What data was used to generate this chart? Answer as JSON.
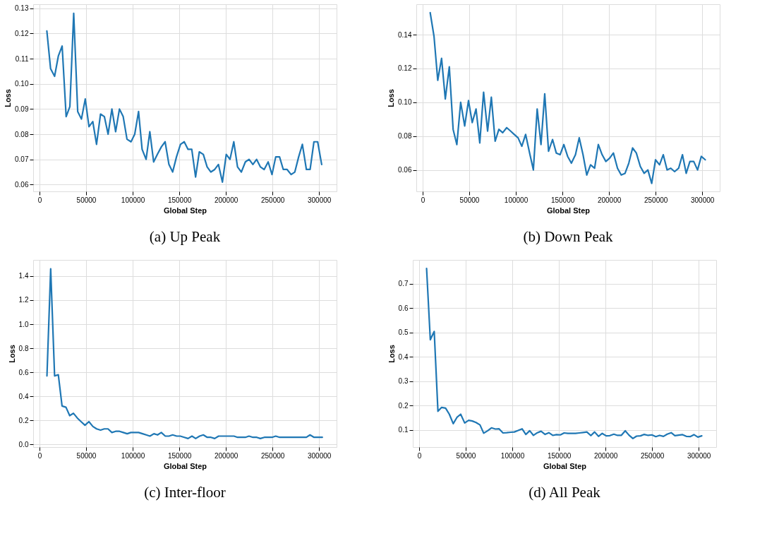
{
  "chart_data": [
    {
      "type": "line",
      "title": "(a) Up Peak",
      "xlabel": "Global Step",
      "ylabel": "Loss",
      "grid": true,
      "line_style": "solid",
      "xlim": [
        -6800,
        318800
      ],
      "xticks": [
        0,
        50000,
        100000,
        150000,
        200000,
        250000,
        300000
      ],
      "ylim": [
        0.0573,
        0.1316
      ],
      "yticks": [
        0.06,
        0.07,
        0.08,
        0.09,
        {
          "value": 0.1,
          "label": "0.10"
        },
        0.11,
        0.12,
        0.13
      ],
      "series": [
        {
          "color": "#1f77b4",
          "x": [
            7900,
            11900,
            16200,
            20200,
            24300,
            28600,
            32600,
            36700,
            41000,
            45000,
            49100,
            53100,
            57200,
            61200,
            65500,
            69600,
            73600,
            77700,
            81700,
            85800,
            89800,
            93900,
            98200,
            102200,
            106300,
            110100,
            114400,
            118400,
            122500,
            126500,
            130800,
            134800,
            138900,
            142900,
            147000,
            151300,
            155300,
            159400,
            163400,
            167500,
            171500,
            175800,
            179900,
            183900,
            188000,
            192000,
            196300,
            200400,
            204400,
            208500,
            212500,
            216600,
            220900,
            224900,
            229000,
            233000,
            237100,
            241100,
            245400,
            249500,
            253500,
            257600,
            261600,
            265700,
            270000,
            274000,
            278100,
            282100,
            286400,
            290400,
            294500,
            298500,
            302800
          ],
          "values": [
            0.121,
            0.106,
            0.103,
            0.111,
            0.115,
            0.087,
            0.091,
            0.128,
            0.089,
            0.086,
            0.094,
            0.083,
            0.085,
            0.076,
            0.088,
            0.087,
            0.08,
            0.09,
            0.081,
            0.09,
            0.087,
            0.078,
            0.077,
            0.08,
            0.089,
            0.074,
            0.07,
            0.081,
            0.069,
            0.072,
            0.075,
            0.077,
            0.068,
            0.065,
            0.071,
            0.076,
            0.077,
            0.074,
            0.074,
            0.063,
            0.073,
            0.072,
            0.067,
            0.065,
            0.066,
            0.068,
            0.061,
            0.072,
            0.07,
            0.077,
            0.067,
            0.065,
            0.069,
            0.07,
            0.068,
            0.07,
            0.067,
            0.066,
            0.069,
            0.064,
            0.071,
            0.071,
            0.066,
            0.066,
            0.064,
            0.065,
            0.071,
            0.076,
            0.066,
            0.066,
            0.077,
            0.077,
            0.068
          ]
        }
      ]
    },
    {
      "type": "line",
      "title": "(b) Down Peak",
      "xlabel": "Global Step",
      "ylabel": "Loss",
      "grid": true,
      "line_style": "solid",
      "xlim": [
        -6800,
        318800
      ],
      "xticks": [
        0,
        50000,
        100000,
        150000,
        200000,
        250000,
        300000
      ],
      "ylim": [
        0.0473,
        0.158
      ],
      "yticks": [
        0.06,
        0.08,
        {
          "value": 0.1,
          "label": "0.10"
        },
        0.12,
        0.14
      ],
      "series": [
        {
          "color": "#1f77b4",
          "x": [
            8100,
            12200,
            16200,
            20300,
            24300,
            28600,
            32700,
            36700,
            40800,
            45100,
            49200,
            53200,
            57300,
            61300,
            65400,
            69700,
            73700,
            77800,
            81800,
            85900,
            90200,
            94300,
            98300,
            102400,
            106400,
            110500,
            114800,
            118800,
            122900,
            127000,
            131000,
            135100,
            139400,
            143400,
            147500,
            151500,
            155600,
            159600,
            164000,
            168000,
            172100,
            176100,
            180200,
            184500,
            188500,
            192600,
            196600,
            200700,
            204700,
            209100,
            213100,
            217200,
            221200,
            225300,
            229300,
            233600,
            237700,
            241700,
            245800,
            249900,
            254200,
            258200,
            262300,
            266300,
            270400,
            274700,
            278800,
            282800,
            286800,
            290900,
            295000,
            299000,
            303300
          ],
          "values": [
            0.153,
            0.139,
            0.113,
            0.126,
            0.102,
            0.121,
            0.084,
            0.075,
            0.1,
            0.086,
            0.101,
            0.088,
            0.096,
            0.076,
            0.106,
            0.083,
            0.103,
            0.077,
            0.084,
            0.082,
            0.085,
            0.083,
            0.081,
            0.079,
            0.074,
            0.081,
            0.07,
            0.06,
            0.096,
            0.075,
            0.105,
            0.071,
            0.078,
            0.07,
            0.069,
            0.075,
            0.068,
            0.064,
            0.069,
            0.079,
            0.069,
            0.057,
            0.063,
            0.061,
            0.075,
            0.069,
            0.065,
            0.067,
            0.07,
            0.061,
            0.057,
            0.058,
            0.064,
            0.073,
            0.07,
            0.062,
            0.058,
            0.06,
            0.052,
            0.066,
            0.063,
            0.069,
            0.06,
            0.061,
            0.059,
            0.061,
            0.069,
            0.058,
            0.065,
            0.065,
            0.06,
            0.068,
            0.066
          ]
        }
      ]
    },
    {
      "type": "line",
      "title": "(c) Inter-floor",
      "xlabel": "Global Step",
      "ylabel": "Loss",
      "grid": true,
      "line_style": "solid",
      "xlim": [
        -6800,
        318800
      ],
      "xticks": [
        0,
        50000,
        100000,
        150000,
        200000,
        250000,
        300000
      ],
      "ylim": [
        -0.021,
        1.534
      ],
      "yticks": [
        {
          "value": 0,
          "label": "0.0"
        },
        0.2,
        0.4,
        0.6,
        0.8,
        {
          "value": 1,
          "label": "1.0"
        },
        1.2,
        1.4
      ],
      "series": [
        {
          "color": "#1f77b4",
          "x": [
            8000,
            12000,
            16200,
            20200,
            24200,
            28400,
            32400,
            36400,
            40600,
            44600,
            48800,
            53000,
            57300,
            61300,
            65500,
            69500,
            73500,
            77700,
            81700,
            85900,
            89900,
            94100,
            98100,
            102300,
            106300,
            110600,
            114500,
            118500,
            122800,
            126700,
            130700,
            135000,
            138900,
            142900,
            147200,
            151100,
            155400,
            159400,
            163600,
            167600,
            171800,
            175800,
            180000,
            184000,
            188000,
            192200,
            196200,
            200400,
            204400,
            208700,
            212600,
            216900,
            220900,
            224800,
            229100,
            233100,
            237000,
            241300,
            245300,
            249500,
            253500,
            257700,
            261700,
            265900,
            269900,
            274100,
            278100,
            282100,
            286400,
            290300,
            294600,
            298600,
            303500
          ],
          "values": [
            0.57,
            1.46,
            0.57,
            0.58,
            0.32,
            0.31,
            0.24,
            0.26,
            0.22,
            0.19,
            0.16,
            0.19,
            0.15,
            0.13,
            0.12,
            0.13,
            0.13,
            0.1,
            0.11,
            0.11,
            0.1,
            0.09,
            0.1,
            0.1,
            0.1,
            0.09,
            0.08,
            0.07,
            0.09,
            0.08,
            0.1,
            0.07,
            0.07,
            0.08,
            0.07,
            0.07,
            0.06,
            0.05,
            0.07,
            0.05,
            0.07,
            0.08,
            0.06,
            0.06,
            0.05,
            0.07,
            0.07,
            0.07,
            0.07,
            0.07,
            0.06,
            0.06,
            0.06,
            0.07,
            0.06,
            0.06,
            0.05,
            0.06,
            0.06,
            0.06,
            0.07,
            0.06,
            0.06,
            0.06,
            0.06,
            0.06,
            0.06,
            0.06,
            0.06,
            0.08,
            0.06,
            0.06,
            0.06
          ]
        }
      ]
    },
    {
      "type": "line",
      "title": "(d) All Peak",
      "xlabel": "Global Step",
      "ylabel": "Loss",
      "grid": true,
      "line_style": "solid",
      "xlim": [
        -6800,
        318800
      ],
      "xticks": [
        0,
        50000,
        100000,
        150000,
        200000,
        250000,
        300000
      ],
      "ylim": [
        0.029,
        0.798
      ],
      "yticks": [
        0.1,
        0.2,
        0.3,
        0.4,
        0.5,
        0.6,
        0.7
      ],
      "series": [
        {
          "color": "#1f77b4",
          "x": [
            8000,
            12000,
            16200,
            20200,
            24200,
            28400,
            32400,
            36600,
            40600,
            44600,
            48900,
            53100,
            57100,
            61100,
            65300,
            69300,
            73600,
            77600,
            81800,
            85800,
            90000,
            94000,
            98300,
            102200,
            106200,
            110500,
            114500,
            118700,
            122700,
            126900,
            130900,
            135200,
            139200,
            143400,
            147400,
            151600,
            155600,
            159600,
            163800,
            167800,
            172000,
            176000,
            180000,
            184300,
            188300,
            192500,
            196500,
            200700,
            204700,
            209000,
            212900,
            216900,
            221200,
            225200,
            229400,
            233400,
            237600,
            241600,
            245800,
            249800,
            254000,
            258000,
            262200,
            266200,
            270500,
            274500,
            278500,
            282700,
            286700,
            290900,
            294900,
            299100,
            303300
          ],
          "values": [
            0.763,
            0.47,
            0.504,
            0.176,
            0.192,
            0.189,
            0.164,
            0.125,
            0.151,
            0.164,
            0.128,
            0.139,
            0.136,
            0.13,
            0.12,
            0.086,
            0.096,
            0.108,
            0.103,
            0.104,
            0.087,
            0.088,
            0.09,
            0.091,
            0.097,
            0.104,
            0.081,
            0.096,
            0.077,
            0.088,
            0.094,
            0.081,
            0.088,
            0.077,
            0.08,
            0.079,
            0.087,
            0.085,
            0.085,
            0.085,
            0.087,
            0.089,
            0.091,
            0.076,
            0.091,
            0.073,
            0.085,
            0.075,
            0.076,
            0.082,
            0.077,
            0.077,
            0.096,
            0.078,
            0.064,
            0.074,
            0.075,
            0.081,
            0.077,
            0.079,
            0.072,
            0.077,
            0.073,
            0.082,
            0.088,
            0.076,
            0.078,
            0.08,
            0.073,
            0.072,
            0.08,
            0.07,
            0.075
          ]
        }
      ]
    }
  ]
}
